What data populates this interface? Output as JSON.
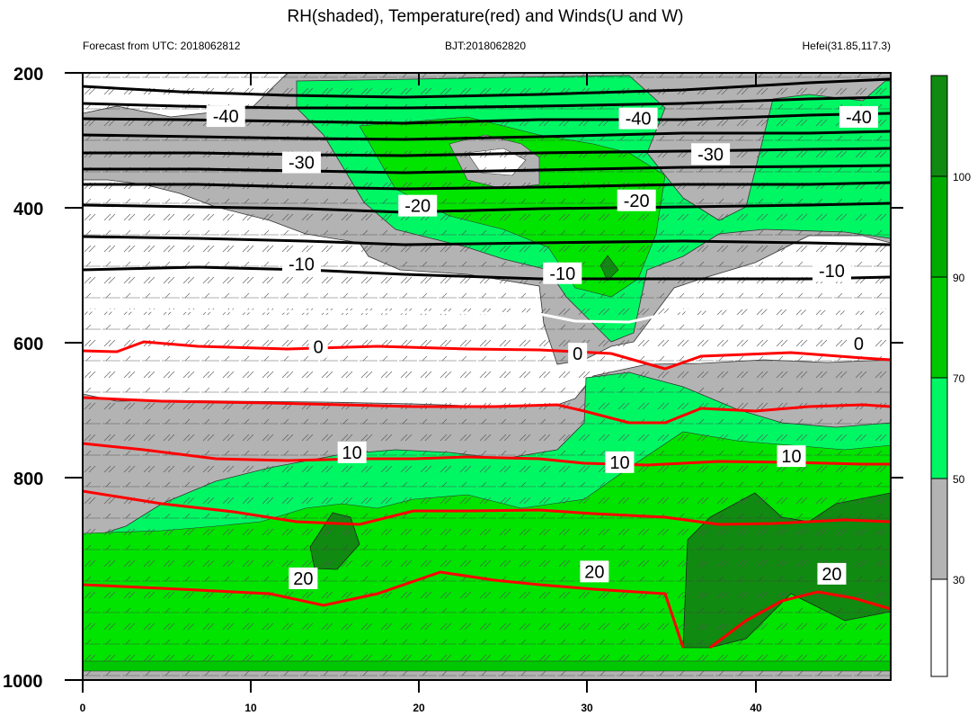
{
  "chart_data": {
    "type": "contour",
    "title": "RH(shaded), Temperature(red) and Winds(U and W)",
    "subtitle_left": "Forecast from UTC: 2018062812",
    "subtitle_center": "BJT:2018062820",
    "subtitle_right": "Hefei(31.85,117.3)",
    "x_range": [
      0,
      48
    ],
    "y_range": [
      200,
      1000
    ],
    "y_axis_reversed": true,
    "x_ticks": [
      "0",
      "10",
      "20",
      "30",
      "40"
    ],
    "y_ticks": [
      "200",
      "400",
      "600",
      "800",
      "1000"
    ],
    "colorbar": {
      "labels": [
        "30",
        "50",
        "70",
        "90",
        "100"
      ],
      "colors": [
        "#ffffff",
        "#b3b3b3",
        "#00f764",
        "#00e400",
        "#00c800",
        "#00ab00",
        "#108a10"
      ]
    },
    "temperature_contours": [
      {
        "value": "-40",
        "color": "#000000"
      },
      {
        "value": "-30",
        "color": "#000000"
      },
      {
        "value": "-20",
        "color": "#000000"
      },
      {
        "value": "-10",
        "color": "#000000"
      },
      {
        "value": "0",
        "color": "#ffffff"
      },
      {
        "value": "10",
        "color": "#ff0000"
      },
      {
        "value": "20",
        "color": "#ff0000"
      }
    ],
    "contour_labels": [
      {
        "text": "-40",
        "x": 8.5,
        "y": 257
      },
      {
        "text": "-40",
        "x": 33,
        "y": 260
      },
      {
        "text": "-40",
        "x": 46.1,
        "y": 258
      },
      {
        "text": "-30",
        "x": 13,
        "y": 318
      },
      {
        "text": "-30",
        "x": 37.3,
        "y": 307
      },
      {
        "text": "-20",
        "x": 19.9,
        "y": 375
      },
      {
        "text": "-20",
        "x": 32.9,
        "y": 368
      },
      {
        "text": "-10",
        "x": 13,
        "y": 452
      },
      {
        "text": "-10",
        "x": 28.5,
        "y": 464
      },
      {
        "text": "-10",
        "x": 44.5,
        "y": 461
      },
      {
        "text": "0",
        "x": 14,
        "y": 561
      },
      {
        "text": "0",
        "x": 29.4,
        "y": 570
      },
      {
        "text": "0",
        "x": 46.1,
        "y": 557
      },
      {
        "text": "10",
        "x": 16,
        "y": 700
      },
      {
        "text": "10",
        "x": 31.9,
        "y": 713
      },
      {
        "text": "10",
        "x": 42.1,
        "y": 705
      },
      {
        "text": "20",
        "x": 13.1,
        "y": 866
      },
      {
        "text": "20",
        "x": 30.4,
        "y": 857
      },
      {
        "text": "20",
        "x": 44.5,
        "y": 860
      }
    ]
  }
}
